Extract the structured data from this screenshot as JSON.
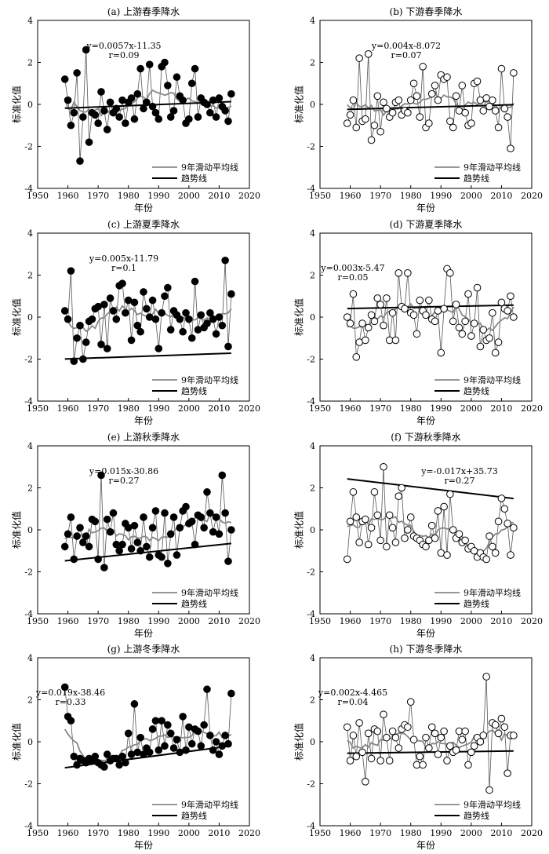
{
  "legend": {
    "ma_label": "9年滑动平均线",
    "trend_label": "趋势线"
  },
  "chart_data": [
    {
      "id": "a",
      "type": "scatter",
      "title": "(a) 上游春季降水",
      "xlabel": "年份",
      "ylabel": "标准化值",
      "xlim": [
        1950,
        2020
      ],
      "ylim": [
        -4,
        4
      ],
      "xticks": [
        1950,
        1960,
        1970,
        1980,
        1990,
        2000,
        2010,
        2020
      ],
      "yticks": [
        -4,
        -2,
        0,
        2,
        4
      ],
      "marker": "filled",
      "equation": "y=0.0057x-11.35",
      "r_text": "r=0.09",
      "trend": {
        "slope": 0.0057,
        "intercept": -11.35
      },
      "ann": "top-center",
      "x": [
        1959,
        1960,
        1961,
        1962,
        1963,
        1964,
        1965,
        1966,
        1967,
        1968,
        1969,
        1970,
        1971,
        1972,
        1973,
        1974,
        1975,
        1976,
        1977,
        1978,
        1979,
        1980,
        1981,
        1982,
        1983,
        1984,
        1985,
        1986,
        1987,
        1988,
        1989,
        1990,
        1991,
        1992,
        1993,
        1994,
        1995,
        1996,
        1997,
        1998,
        1999,
        2000,
        2001,
        2002,
        2003,
        2004,
        2005,
        2006,
        2007,
        2008,
        2009,
        2010,
        2011,
        2012,
        2013,
        2014
      ],
      "values": [
        1.2,
        0.2,
        -1.0,
        -0.4,
        1.5,
        -2.7,
        -0.6,
        2.6,
        -1.8,
        -0.4,
        -0.5,
        -0.9,
        0.6,
        -0.3,
        -1.2,
        0.1,
        -0.4,
        -0.2,
        -0.6,
        0.2,
        -0.9,
        0.1,
        0.3,
        -0.7,
        0.5,
        1.7,
        -0.2,
        0.1,
        1.9,
        -0.1,
        -0.4,
        -0.7,
        1.8,
        2.0,
        0.9,
        -0.6,
        -0.3,
        1.3,
        0.4,
        0.2,
        -0.9,
        -0.7,
        1.0,
        1.7,
        -0.6,
        0.3,
        0.1,
        0.0,
        -0.4,
        0.2,
        -0.6,
        0.3,
        -0.1,
        -0.3,
        -0.8,
        0.5
      ]
    },
    {
      "id": "b",
      "type": "scatter",
      "title": "(b) 下游春季降水",
      "xlabel": "年份",
      "ylabel": "标准化值",
      "xlim": [
        1950,
        2020
      ],
      "ylim": [
        -4,
        4
      ],
      "xticks": [
        1950,
        1960,
        1970,
        1980,
        1990,
        2000,
        2010,
        2020
      ],
      "yticks": [
        -4,
        -2,
        0,
        2,
        4
      ],
      "marker": "open",
      "equation": "y=0.004x-8.072",
      "r_text": "r=0.07",
      "trend": {
        "slope": 0.004,
        "intercept": -8.072
      },
      "ann": "top-center",
      "x": [
        1959,
        1960,
        1961,
        1962,
        1963,
        1964,
        1965,
        1966,
        1967,
        1968,
        1969,
        1970,
        1971,
        1972,
        1973,
        1974,
        1975,
        1976,
        1977,
        1978,
        1979,
        1980,
        1981,
        1982,
        1983,
        1984,
        1985,
        1986,
        1987,
        1988,
        1989,
        1990,
        1991,
        1992,
        1993,
        1994,
        1995,
        1996,
        1997,
        1998,
        1999,
        2000,
        2001,
        2002,
        2003,
        2004,
        2005,
        2006,
        2007,
        2008,
        2009,
        2010,
        2011,
        2012,
        2013,
        2014
      ],
      "values": [
        -0.9,
        -0.5,
        0.2,
        -1.1,
        2.2,
        -0.8,
        -0.7,
        2.4,
        -1.7,
        -1.0,
        0.4,
        -1.3,
        0.1,
        -0.2,
        -0.6,
        -0.4,
        0.1,
        0.2,
        -0.5,
        -0.3,
        -0.4,
        0.2,
        1.0,
        0.4,
        -0.6,
        1.8,
        -1.1,
        -0.9,
        0.5,
        0.9,
        0.2,
        1.4,
        1.2,
        1.3,
        -0.8,
        -1.1,
        0.4,
        -0.3,
        0.9,
        -0.4,
        -1.0,
        -0.9,
        1.0,
        1.1,
        0.2,
        -0.3,
        0.3,
        -0.1,
        0.2,
        -0.3,
        -1.1,
        1.7,
        -0.2,
        -0.6,
        -2.1,
        1.5
      ]
    },
    {
      "id": "c",
      "type": "scatter",
      "title": "(c) 上游夏季降水",
      "xlabel": "年份",
      "ylabel": "标准化值",
      "xlim": [
        1950,
        2020
      ],
      "ylim": [
        -4,
        4
      ],
      "xticks": [
        1950,
        1960,
        1970,
        1980,
        1990,
        2000,
        2010,
        2020
      ],
      "yticks": [
        -4,
        -2,
        0,
        2,
        4
      ],
      "marker": "filled",
      "equation": "y=0.005x-11.79",
      "r_text": "r=0.1",
      "trend": {
        "slope": 0.005,
        "intercept": -11.79
      },
      "ann": "top-center",
      "x": [
        1959,
        1960,
        1961,
        1962,
        1963,
        1964,
        1965,
        1966,
        1967,
        1968,
        1969,
        1970,
        1971,
        1972,
        1973,
        1974,
        1975,
        1976,
        1977,
        1978,
        1979,
        1980,
        1981,
        1982,
        1983,
        1984,
        1985,
        1986,
        1987,
        1988,
        1989,
        1990,
        1991,
        1992,
        1993,
        1994,
        1995,
        1996,
        1997,
        1998,
        1999,
        2000,
        2001,
        2002,
        2003,
        2004,
        2005,
        2006,
        2007,
        2008,
        2009,
        2010,
        2011,
        2012,
        2013,
        2014
      ],
      "values": [
        0.3,
        -0.1,
        2.2,
        -2.1,
        -1.0,
        -0.4,
        -2.0,
        -1.2,
        -0.2,
        -0.1,
        0.4,
        0.5,
        -1.3,
        0.6,
        -1.5,
        0.9,
        0.3,
        -0.1,
        1.5,
        1.6,
        0.2,
        0.8,
        -1.1,
        0.7,
        -0.4,
        -0.7,
        1.2,
        0.4,
        0.0,
        0.8,
        -0.1,
        -1.5,
        0.2,
        1.0,
        1.4,
        -0.6,
        0.3,
        0.1,
        -0.1,
        -0.7,
        0.2,
        -0.1,
        -1.0,
        1.7,
        -0.6,
        0.1,
        -0.5,
        -0.3,
        0.2,
        -0.1,
        -0.8,
        0.0,
        -0.4,
        2.7,
        -1.4,
        1.1
      ]
    },
    {
      "id": "d",
      "type": "scatter",
      "title": "(d) 下游夏季降水",
      "xlabel": "年份",
      "ylabel": "标准化值",
      "xlim": [
        1950,
        2020
      ],
      "ylim": [
        -4,
        4
      ],
      "xticks": [
        1950,
        1960,
        1970,
        1980,
        1990,
        2000,
        2010,
        2020
      ],
      "yticks": [
        -4,
        -2,
        0,
        2,
        4
      ],
      "marker": "open",
      "equation": "y=0.003x-5.47",
      "r_text": "r=0.05",
      "trend": {
        "slope": 0.003,
        "intercept": -5.47
      },
      "ann": "top-left",
      "x": [
        1959,
        1960,
        1961,
        1962,
        1963,
        1964,
        1965,
        1966,
        1967,
        1968,
        1969,
        1970,
        1971,
        1972,
        1973,
        1974,
        1975,
        1976,
        1977,
        1978,
        1979,
        1980,
        1981,
        1982,
        1983,
        1984,
        1985,
        1986,
        1987,
        1988,
        1989,
        1990,
        1991,
        1992,
        1993,
        1994,
        1995,
        1996,
        1997,
        1998,
        1999,
        2000,
        2001,
        2002,
        2003,
        2004,
        2005,
        2006,
        2007,
        2008,
        2009,
        2010,
        2011,
        2012,
        2013,
        2014
      ],
      "values": [
        0.0,
        -0.3,
        1.1,
        -1.9,
        -1.2,
        -0.3,
        -1.1,
        -0.5,
        0.1,
        -0.2,
        0.9,
        0.6,
        -0.4,
        0.9,
        -1.1,
        0.2,
        -1.1,
        2.1,
        0.5,
        0.4,
        2.1,
        0.2,
        0.1,
        -0.8,
        0.8,
        0.3,
        0.1,
        0.8,
        -0.1,
        -0.2,
        0.3,
        -1.7,
        0.4,
        2.3,
        2.1,
        -0.2,
        0.6,
        -0.5,
        -0.8,
        -0.2,
        1.1,
        -0.9,
        -0.3,
        1.4,
        -1.4,
        -0.6,
        -1.1,
        -1.0,
        0.2,
        -1.7,
        -1.2,
        0.7,
        0.4,
        0.3,
        1.0,
        0.0
      ]
    },
    {
      "id": "e",
      "type": "scatter",
      "title": "(e) 上游秋季降水",
      "xlabel": "年份",
      "ylabel": "标准化值",
      "xlim": [
        1950,
        2020
      ],
      "ylim": [
        -4,
        4
      ],
      "xticks": [
        1950,
        1960,
        1970,
        1980,
        1990,
        2000,
        2010,
        2020
      ],
      "yticks": [
        -4,
        -2,
        0,
        2,
        4
      ],
      "marker": "filled",
      "equation": "y=0.015x-30.86",
      "r_text": "r=0.27",
      "trend": {
        "slope": 0.015,
        "intercept": -30.86
      },
      "ann": "top-center",
      "x": [
        1959,
        1960,
        1961,
        1962,
        1963,
        1964,
        1965,
        1966,
        1967,
        1968,
        1969,
        1970,
        1971,
        1972,
        1973,
        1974,
        1975,
        1976,
        1977,
        1978,
        1979,
        1980,
        1981,
        1982,
        1983,
        1984,
        1985,
        1986,
        1987,
        1988,
        1989,
        1990,
        1991,
        1992,
        1993,
        1994,
        1995,
        1996,
        1997,
        1998,
        1999,
        2000,
        2001,
        2002,
        2003,
        2004,
        2005,
        2006,
        2007,
        2008,
        2009,
        2010,
        2011,
        2012,
        2013,
        2014
      ],
      "values": [
        -0.8,
        -0.2,
        0.6,
        -1.4,
        -0.3,
        0.1,
        -0.6,
        -0.3,
        -0.8,
        0.5,
        0.4,
        -1.4,
        2.6,
        -1.8,
        0.5,
        -0.1,
        0.8,
        -0.7,
        -1.0,
        -0.7,
        0.3,
        0.1,
        -0.9,
        0.2,
        -0.6,
        -1.0,
        0.6,
        -0.8,
        -1.3,
        0.1,
        0.9,
        -1.2,
        -1.3,
        0.8,
        -1.6,
        -0.2,
        0.6,
        -1.2,
        0.1,
        0.9,
        1.1,
        0.3,
        0.4,
        -0.7,
        0.7,
        0.6,
        0.1,
        1.8,
        0.8,
        -0.1,
        0.6,
        -0.2,
        2.6,
        0.8,
        -1.5,
        0.0
      ]
    },
    {
      "id": "f",
      "type": "scatter",
      "title": "(f) 下游秋季降水",
      "xlabel": "年份",
      "ylabel": "标准化值",
      "xlim": [
        1950,
        2020
      ],
      "ylim": [
        -4,
        4
      ],
      "xticks": [
        1950,
        1960,
        1970,
        1980,
        1990,
        2000,
        2010,
        2020
      ],
      "yticks": [
        -4,
        -2,
        0,
        2,
        4
      ],
      "marker": "open",
      "equation": "y=-0.017x+35.73",
      "r_text": "r=0.27",
      "trend": {
        "slope": -0.017,
        "intercept": 35.73
      },
      "ann": "top-right",
      "x": [
        1959,
        1960,
        1961,
        1962,
        1963,
        1964,
        1965,
        1966,
        1967,
        1968,
        1969,
        1970,
        1971,
        1972,
        1973,
        1974,
        1975,
        1976,
        1977,
        1978,
        1979,
        1980,
        1981,
        1982,
        1983,
        1984,
        1985,
        1986,
        1987,
        1988,
        1989,
        1990,
        1991,
        1992,
        1993,
        1994,
        1995,
        1996,
        1997,
        1998,
        1999,
        2000,
        2001,
        2002,
        2003,
        2004,
        2005,
        2006,
        2007,
        2008,
        2009,
        2010,
        2011,
        2012,
        2013,
        2014
      ],
      "values": [
        -1.4,
        0.4,
        1.8,
        0.6,
        -0.6,
        0.4,
        0.5,
        -0.7,
        0.1,
        1.8,
        0.7,
        -0.5,
        3.0,
        -0.8,
        0.7,
        0.1,
        -0.6,
        1.6,
        2.0,
        -0.4,
        0.0,
        0.6,
        -0.3,
        -0.4,
        -0.5,
        -0.7,
        -0.8,
        -0.5,
        0.2,
        -0.4,
        0.9,
        -1.1,
        1.1,
        -1.2,
        1.7,
        0.0,
        -0.4,
        -0.2,
        -0.6,
        -0.5,
        -0.9,
        -0.8,
        -1.0,
        -1.3,
        -1.1,
        -1.3,
        -1.4,
        -0.3,
        -0.8,
        -1.1,
        0.4,
        1.5,
        1.0,
        0.3,
        -1.2,
        0.1
      ]
    },
    {
      "id": "g",
      "type": "scatter",
      "title": "(g) 上游冬季降水",
      "xlabel": "年份",
      "ylabel": "标准化值",
      "xlim": [
        1950,
        2020
      ],
      "ylim": [
        -4,
        4
      ],
      "xticks": [
        1950,
        1960,
        1970,
        1980,
        1990,
        2000,
        2010,
        2020
      ],
      "yticks": [
        -4,
        -2,
        0,
        2,
        4
      ],
      "marker": "filled",
      "equation": "y=0.019x-38.46",
      "r_text": "r=0.33",
      "trend": {
        "slope": 0.019,
        "intercept": -38.46
      },
      "ann": "top-left",
      "x": [
        1959,
        1960,
        1961,
        1962,
        1963,
        1964,
        1965,
        1966,
        1967,
        1968,
        1969,
        1970,
        1971,
        1972,
        1973,
        1974,
        1975,
        1976,
        1977,
        1978,
        1979,
        1980,
        1981,
        1982,
        1983,
        1984,
        1985,
        1986,
        1987,
        1988,
        1989,
        1990,
        1991,
        1992,
        1993,
        1994,
        1995,
        1996,
        1997,
        1998,
        1999,
        2000,
        2001,
        2002,
        2003,
        2004,
        2005,
        2006,
        2007,
        2008,
        2009,
        2010,
        2011,
        2012,
        2013,
        2014
      ],
      "values": [
        2.6,
        1.2,
        1.0,
        -0.7,
        -1.1,
        -0.8,
        -0.9,
        -1.0,
        -0.8,
        -0.9,
        -0.7,
        -1.0,
        -1.1,
        -1.2,
        -0.6,
        -0.9,
        -0.8,
        -0.8,
        -1.1,
        -0.7,
        -1.0,
        0.4,
        -0.6,
        1.8,
        -0.5,
        0.2,
        -0.6,
        -0.3,
        -0.5,
        0.6,
        1.0,
        -0.4,
        1.0,
        -0.2,
        0.8,
        0.4,
        -0.3,
        0.1,
        -0.5,
        1.2,
        -0.4,
        0.7,
        -0.1,
        0.6,
        0.5,
        -0.2,
        0.8,
        2.5,
        0.3,
        -0.4,
        0.0,
        -0.6,
        -0.2,
        0.3,
        -0.1,
        2.3
      ]
    },
    {
      "id": "h",
      "type": "scatter",
      "title": "(h) 下游冬季降水",
      "xlabel": "年份",
      "ylabel": "标准化值",
      "xlim": [
        1950,
        2020
      ],
      "ylim": [
        -4,
        4
      ],
      "xticks": [
        1950,
        1960,
        1970,
        1980,
        1990,
        2000,
        2010,
        2020
      ],
      "yticks": [
        -4,
        -2,
        0,
        2,
        4
      ],
      "marker": "open",
      "equation": "y=0.002x-4.465",
      "r_text": "r=0.04",
      "trend": {
        "slope": 0.002,
        "intercept": -4.465
      },
      "ann": "top-left",
      "x": [
        1959,
        1960,
        1961,
        1962,
        1963,
        1964,
        1965,
        1966,
        1967,
        1968,
        1969,
        1970,
        1971,
        1972,
        1973,
        1974,
        1975,
        1976,
        1977,
        1978,
        1979,
        1980,
        1981,
        1982,
        1983,
        1984,
        1985,
        1986,
        1987,
        1988,
        1989,
        1990,
        1991,
        1992,
        1993,
        1994,
        1995,
        1996,
        1997,
        1998,
        1999,
        2000,
        2001,
        2002,
        2003,
        2004,
        2005,
        2006,
        2007,
        2008,
        2009,
        2010,
        2011,
        2012,
        2013,
        2014
      ],
      "values": [
        0.7,
        -0.9,
        0.3,
        -0.7,
        0.9,
        -0.5,
        -1.9,
        0.4,
        -0.8,
        0.6,
        0.5,
        -0.9,
        1.3,
        0.2,
        -0.9,
        0.5,
        0.2,
        -0.3,
        0.6,
        0.8,
        0.7,
        1.9,
        0.1,
        -1.1,
        -0.7,
        -1.1,
        0.2,
        -0.3,
        0.7,
        0.4,
        -0.6,
        0.2,
        0.5,
        -0.9,
        -0.2,
        -0.5,
        -0.4,
        0.5,
        0.1,
        0.5,
        -1.1,
        -0.5,
        -0.2,
        0.2,
        0.0,
        0.3,
        3.1,
        -2.3,
        0.9,
        0.8,
        0.4,
        1.1,
        0.7,
        -1.5,
        0.3,
        0.3
      ]
    }
  ]
}
